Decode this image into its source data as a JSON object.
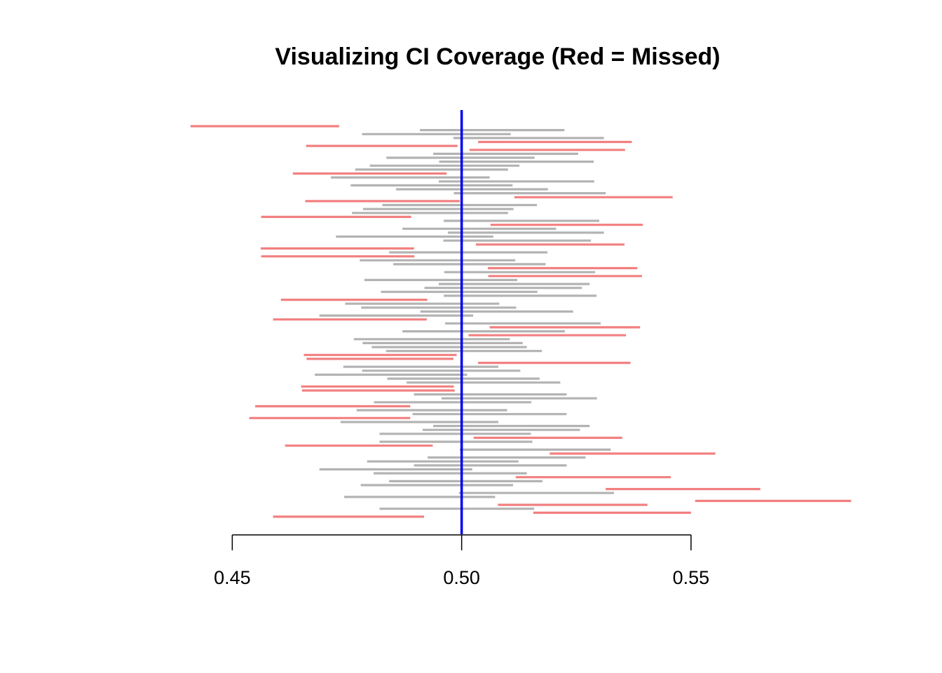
{
  "chart_data": {
    "type": "interval",
    "title": "Visualizing CI Coverage (Red = Missed)",
    "xlabel": "",
    "ylabel": "",
    "xlim": [
      0.4394,
      0.5879
    ],
    "x_ticks": [
      0.45,
      0.5,
      0.55
    ],
    "x_tick_labels": [
      "0.45",
      "0.50",
      "0.55"
    ],
    "reference_line": {
      "value": 0.5,
      "color": "#0000ee"
    },
    "colors": {
      "covered": "#b3b3b3",
      "missed": "#f28080"
    },
    "grid": false,
    "legend": "none",
    "intervals": [
      {
        "lower": 0.4409,
        "upper": 0.4733,
        "missed": true
      },
      {
        "lower": 0.4909,
        "upper": 0.5224,
        "missed": false
      },
      {
        "lower": 0.4783,
        "upper": 0.5107,
        "missed": false
      },
      {
        "lower": 0.4982,
        "upper": 0.531,
        "missed": false
      },
      {
        "lower": 0.5036,
        "upper": 0.5371,
        "missed": true
      },
      {
        "lower": 0.4661,
        "upper": 0.4991,
        "missed": true
      },
      {
        "lower": 0.5017,
        "upper": 0.5356,
        "missed": true
      },
      {
        "lower": 0.4938,
        "upper": 0.5254,
        "missed": false
      },
      {
        "lower": 0.4836,
        "upper": 0.5159,
        "missed": false
      },
      {
        "lower": 0.4951,
        "upper": 0.5288,
        "missed": false
      },
      {
        "lower": 0.48,
        "upper": 0.5126,
        "missed": false
      },
      {
        "lower": 0.4768,
        "upper": 0.5101,
        "missed": false
      },
      {
        "lower": 0.4632,
        "upper": 0.4967,
        "missed": true
      },
      {
        "lower": 0.4715,
        "upper": 0.5061,
        "missed": false
      },
      {
        "lower": 0.495,
        "upper": 0.5289,
        "missed": false
      },
      {
        "lower": 0.4758,
        "upper": 0.5111,
        "missed": false
      },
      {
        "lower": 0.4857,
        "upper": 0.5188,
        "missed": false
      },
      {
        "lower": 0.4983,
        "upper": 0.5314,
        "missed": false
      },
      {
        "lower": 0.5115,
        "upper": 0.546,
        "missed": true
      },
      {
        "lower": 0.4659,
        "upper": 0.4996,
        "missed": true
      },
      {
        "lower": 0.4827,
        "upper": 0.5164,
        "missed": false
      },
      {
        "lower": 0.4785,
        "upper": 0.5113,
        "missed": false
      },
      {
        "lower": 0.4761,
        "upper": 0.5101,
        "missed": false
      },
      {
        "lower": 0.4563,
        "upper": 0.489,
        "missed": true
      },
      {
        "lower": 0.4961,
        "upper": 0.53,
        "missed": false
      },
      {
        "lower": 0.5063,
        "upper": 0.5395,
        "missed": true
      },
      {
        "lower": 0.4871,
        "upper": 0.5206,
        "missed": false
      },
      {
        "lower": 0.497,
        "upper": 0.531,
        "missed": false
      },
      {
        "lower": 0.4726,
        "upper": 0.5069,
        "missed": false
      },
      {
        "lower": 0.496,
        "upper": 0.5282,
        "missed": false
      },
      {
        "lower": 0.5031,
        "upper": 0.5355,
        "missed": true
      },
      {
        "lower": 0.4562,
        "upper": 0.4896,
        "missed": true
      },
      {
        "lower": 0.4842,
        "upper": 0.5187,
        "missed": false
      },
      {
        "lower": 0.4563,
        "upper": 0.4897,
        "missed": true
      },
      {
        "lower": 0.4778,
        "upper": 0.5117,
        "missed": false
      },
      {
        "lower": 0.4851,
        "upper": 0.5183,
        "missed": false
      },
      {
        "lower": 0.5057,
        "upper": 0.5383,
        "missed": true
      },
      {
        "lower": 0.4962,
        "upper": 0.5291,
        "missed": false
      },
      {
        "lower": 0.5058,
        "upper": 0.5393,
        "missed": true
      },
      {
        "lower": 0.4788,
        "upper": 0.5121,
        "missed": false
      },
      {
        "lower": 0.495,
        "upper": 0.5279,
        "missed": false
      },
      {
        "lower": 0.4919,
        "upper": 0.5262,
        "missed": false
      },
      {
        "lower": 0.4824,
        "upper": 0.5165,
        "missed": false
      },
      {
        "lower": 0.4961,
        "upper": 0.5294,
        "missed": false
      },
      {
        "lower": 0.4606,
        "upper": 0.4925,
        "missed": true
      },
      {
        "lower": 0.4746,
        "upper": 0.5082,
        "missed": false
      },
      {
        "lower": 0.4781,
        "upper": 0.5119,
        "missed": false
      },
      {
        "lower": 0.491,
        "upper": 0.5243,
        "missed": false
      },
      {
        "lower": 0.469,
        "upper": 0.5025,
        "missed": false
      },
      {
        "lower": 0.4589,
        "upper": 0.4924,
        "missed": true
      },
      {
        "lower": 0.4964,
        "upper": 0.5303,
        "missed": false
      },
      {
        "lower": 0.5061,
        "upper": 0.5389,
        "missed": true
      },
      {
        "lower": 0.4871,
        "upper": 0.5225,
        "missed": false
      },
      {
        "lower": 0.5015,
        "upper": 0.5358,
        "missed": true
      },
      {
        "lower": 0.4765,
        "upper": 0.5105,
        "missed": false
      },
      {
        "lower": 0.4784,
        "upper": 0.5133,
        "missed": false
      },
      {
        "lower": 0.4804,
        "upper": 0.5142,
        "missed": false
      },
      {
        "lower": 0.4835,
        "upper": 0.5175,
        "missed": false
      },
      {
        "lower": 0.4656,
        "upper": 0.4989,
        "missed": true
      },
      {
        "lower": 0.4662,
        "upper": 0.4982,
        "missed": true
      },
      {
        "lower": 0.5036,
        "upper": 0.5368,
        "missed": true
      },
      {
        "lower": 0.4742,
        "upper": 0.508,
        "missed": false
      },
      {
        "lower": 0.4783,
        "upper": 0.5128,
        "missed": false
      },
      {
        "lower": 0.468,
        "upper": 0.5012,
        "missed": false
      },
      {
        "lower": 0.4838,
        "upper": 0.517,
        "missed": false
      },
      {
        "lower": 0.488,
        "upper": 0.5215,
        "missed": false
      },
      {
        "lower": 0.465,
        "upper": 0.4983,
        "missed": true
      },
      {
        "lower": 0.4652,
        "upper": 0.4985,
        "missed": true
      },
      {
        "lower": 0.4896,
        "upper": 0.5229,
        "missed": false
      },
      {
        "lower": 0.4956,
        "upper": 0.5295,
        "missed": false
      },
      {
        "lower": 0.4809,
        "upper": 0.5152,
        "missed": false
      },
      {
        "lower": 0.455,
        "upper": 0.4888,
        "missed": true
      },
      {
        "lower": 0.4771,
        "upper": 0.5099,
        "missed": false
      },
      {
        "lower": 0.4893,
        "upper": 0.5229,
        "missed": false
      },
      {
        "lower": 0.4537,
        "upper": 0.4888,
        "missed": true
      },
      {
        "lower": 0.4736,
        "upper": 0.508,
        "missed": false
      },
      {
        "lower": 0.4938,
        "upper": 0.5279,
        "missed": false
      },
      {
        "lower": 0.4915,
        "upper": 0.5258,
        "missed": false
      },
      {
        "lower": 0.4821,
        "upper": 0.5151,
        "missed": false
      },
      {
        "lower": 0.5026,
        "upper": 0.535,
        "missed": true
      },
      {
        "lower": 0.4821,
        "upper": 0.5154,
        "missed": false
      },
      {
        "lower": 0.4615,
        "upper": 0.4937,
        "missed": true
      },
      {
        "lower": 0.4996,
        "upper": 0.5325,
        "missed": false
      },
      {
        "lower": 0.5192,
        "upper": 0.5553,
        "missed": true
      },
      {
        "lower": 0.4926,
        "upper": 0.527,
        "missed": false
      },
      {
        "lower": 0.4794,
        "upper": 0.5124,
        "missed": false
      },
      {
        "lower": 0.4896,
        "upper": 0.5229,
        "missed": false
      },
      {
        "lower": 0.469,
        "upper": 0.5023,
        "missed": false
      },
      {
        "lower": 0.4808,
        "upper": 0.5142,
        "missed": false
      },
      {
        "lower": 0.5118,
        "upper": 0.5456,
        "missed": true
      },
      {
        "lower": 0.4842,
        "upper": 0.5176,
        "missed": false
      },
      {
        "lower": 0.478,
        "upper": 0.5112,
        "missed": false
      },
      {
        "lower": 0.5314,
        "upper": 0.5651,
        "missed": true
      },
      {
        "lower": 0.4994,
        "upper": 0.5332,
        "missed": false
      },
      {
        "lower": 0.4744,
        "upper": 0.5073,
        "missed": false
      },
      {
        "lower": 0.5509,
        "upper": 0.5849,
        "missed": true
      },
      {
        "lower": 0.5079,
        "upper": 0.5405,
        "missed": true
      },
      {
        "lower": 0.4821,
        "upper": 0.5158,
        "missed": false
      },
      {
        "lower": 0.5156,
        "upper": 0.55,
        "missed": true
      },
      {
        "lower": 0.4589,
        "upper": 0.4918,
        "missed": true
      }
    ]
  }
}
